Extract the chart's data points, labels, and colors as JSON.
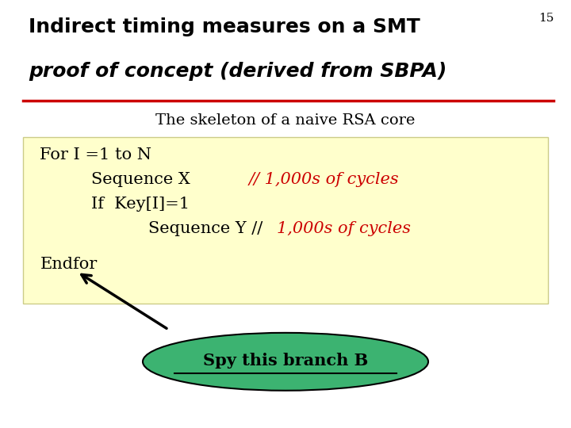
{
  "bg_color": "#ffffff",
  "slide_number": "15",
  "title_line1": "Indirect timing measures on a SMT",
  "title_line2": "proof of concept (derived from SBPA)",
  "title_color": "#000000",
  "red_line_color": "#cc0000",
  "subtitle": "The skeleton of a naive RSA core",
  "subtitle_color": "#000000",
  "code_box_color": "#ffffcc",
  "code_box_edge_color": "#cccc88",
  "ellipse_color": "#3cb371",
  "ellipse_text": "Spy this branch B",
  "ellipse_text_color": "#000000",
  "arrow_color": "#000000"
}
